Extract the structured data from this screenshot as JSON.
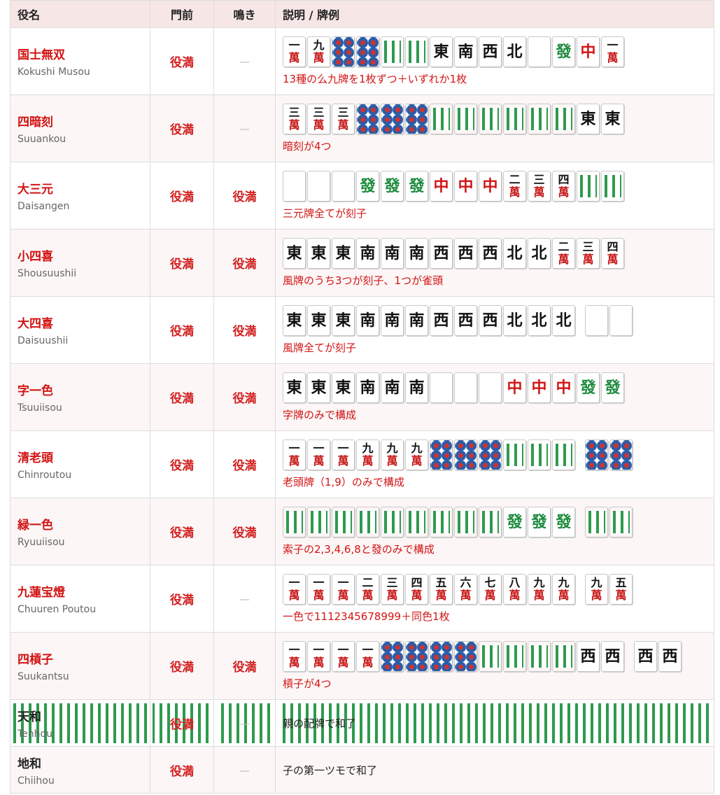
{
  "header": [
    "役名",
    "門前",
    "鳴き",
    "説明 / 牌例"
  ],
  "rows": [
    {
      "name": "国士無双",
      "reading": "Kokushi Musou",
      "menzen": "役満",
      "naki": "—",
      "tiles": [
        "一萬",
        "九萬",
        "東",
        "南",
        "西",
        "北",
        "發",
        "中",
        "一萬"
      ],
      "desc": "13種の么九牌を1枚ずつ＋いずれか1枚"
    },
    {
      "name": "四暗刻",
      "reading": "Suuankou",
      "menzen": "役満",
      "naki": "—",
      "tiles": [
        "三萬",
        "三萬",
        "三萬",
        "東",
        "東"
      ],
      "desc": "暗刻が4つ"
    },
    {
      "name": "大三元",
      "reading": "Daisangen",
      "menzen": "役満",
      "naki": "役満",
      "tiles": [
        "發",
        "發",
        "發",
        "中",
        "中",
        "中",
        "二萬",
        "三萬",
        "四萬"
      ],
      "desc": "三元牌全てが刻子"
    },
    {
      "name": "小四喜",
      "reading": "Shousuushii",
      "menzen": "役満",
      "naki": "役満",
      "tiles": [
        "東",
        "東",
        "東",
        "南",
        "南",
        "南",
        "西",
        "西",
        "西",
        "北",
        "北",
        "二萬",
        "三萬",
        "四萬"
      ],
      "desc": "風牌のうち3つが刻子、1つが雀頭"
    },
    {
      "name": "大四喜",
      "reading": "Daisuushii",
      "menzen": "役満",
      "naki": "役満",
      "tiles": [
        "東",
        "東",
        "東",
        "南",
        "南",
        "南",
        "西",
        "西",
        "西",
        "北",
        "北",
        "北"
      ],
      "desc": "風牌全てが刻子"
    },
    {
      "name": "字一色",
      "reading": "Tsuuiisou",
      "menzen": "役満",
      "naki": "役満",
      "tiles": [
        "東",
        "東",
        "東",
        "南",
        "南",
        "南",
        "中",
        "中",
        "中",
        "發",
        "發"
      ],
      "desc": "字牌のみで構成"
    },
    {
      "name": "清老頭",
      "reading": "Chinroutou",
      "menzen": "役満",
      "naki": "役満",
      "tiles": [
        "一萬",
        "一萬",
        "一萬",
        "九萬",
        "九萬",
        "九萬"
      ],
      "desc": "老頭牌（1,9）のみで構成"
    },
    {
      "name": "緑一色",
      "reading": "Ryuuiisou",
      "menzen": "役満",
      "naki": "役満",
      "tiles": [
        "發",
        "發",
        "發"
      ],
      "desc": "索子の2,3,4,6,8と發のみで構成"
    },
    {
      "name": "九蓮宝燈",
      "reading": "Chuuren Poutou",
      "menzen": "役満",
      "naki": "—",
      "tiles": [
        "一萬",
        "一萬",
        "一萬",
        "二萬",
        "三萬",
        "四萬",
        "五萬",
        "六萬",
        "七萬",
        "八萬",
        "九萬",
        "九萬",
        "九萬",
        "五萬"
      ],
      "desc": "一色で1112345678999＋同色1枚"
    },
    {
      "name": "四槓子",
      "reading": "Suukantsu",
      "menzen": "役満",
      "naki": "役満",
      "tiles": [
        "一萬",
        "一萬",
        "一萬",
        "一萬",
        "西",
        "西",
        "西",
        "西"
      ],
      "desc": "槓子が4つ"
    },
    {
      "name": "天和",
      "reading": "Tenhou",
      "menzen": "役満",
      "naki": "—",
      "tiles": [],
      "desc": "親の配牌で和了"
    },
    {
      "name": "地和",
      "reading": "Chiihou",
      "menzen": "役満",
      "naki": "—",
      "tiles": [],
      "desc": "子の第一ツモで和了"
    }
  ]
}
